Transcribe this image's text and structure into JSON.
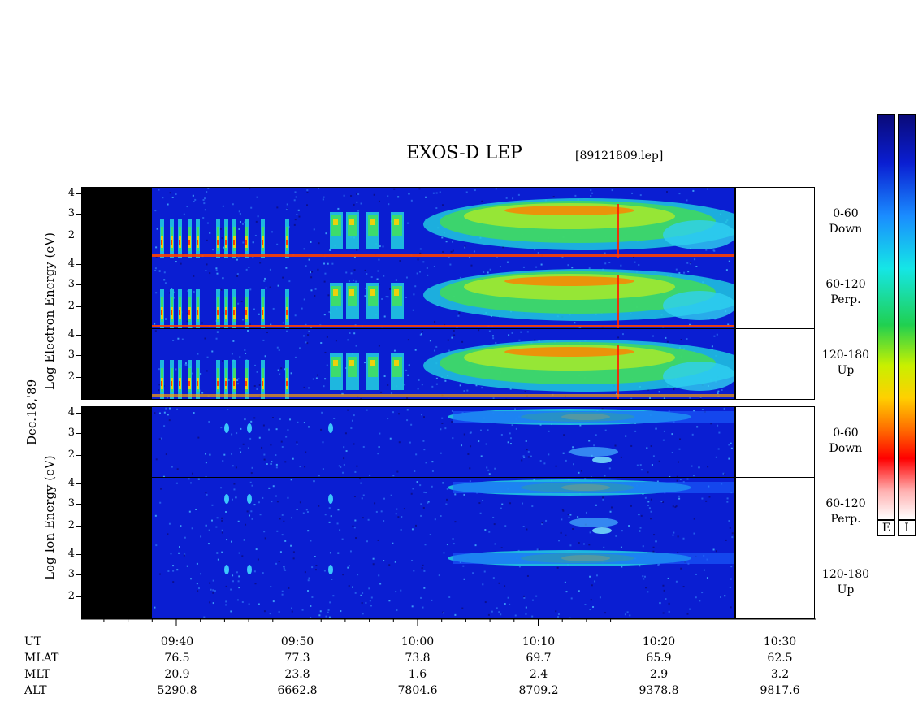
{
  "chart_data": {
    "type": "heatmap",
    "title": "EXOS-D LEP",
    "file_label": "[89121809.lep]",
    "date_label": "Dec.18,'89",
    "electron_ylabel": "Log  Electron  Energy (eV)",
    "ion_ylabel": "Log  Ion  Energy (eV)",
    "y_ticks": [
      "4",
      "3",
      "2"
    ],
    "panels": [
      {
        "species": "Electron",
        "pitch": "0-60",
        "dir": "Down"
      },
      {
        "species": "Electron",
        "pitch": "60-120",
        "dir": "Perp."
      },
      {
        "species": "Electron",
        "pitch": "120-180",
        "dir": "Up"
      },
      {
        "species": "Ion",
        "pitch": "0-60",
        "dir": "Down"
      },
      {
        "species": "Ion",
        "pitch": "60-120",
        "dir": "Perp."
      },
      {
        "species": "Ion",
        "pitch": "120-180",
        "dir": "Up"
      }
    ],
    "x_ticks": [
      "09:40",
      "09:50",
      "10:00",
      "10:10",
      "10:20",
      "10:30"
    ],
    "rows": [
      {
        "name": "UT",
        "values": [
          "09:40",
          "09:50",
          "10:00",
          "10:10",
          "10:20",
          "10:30"
        ]
      },
      {
        "name": "MLAT",
        "values": [
          "76.5",
          "77.3",
          "73.8",
          "69.7",
          "65.9",
          "62.5"
        ]
      },
      {
        "name": "MLT",
        "values": [
          "20.9",
          "23.8",
          "1.6",
          "2.4",
          "2.9",
          "3.2"
        ]
      },
      {
        "name": "ALT",
        "values": [
          "5290.8",
          "6662.8",
          "7804.6",
          "8709.2",
          "9378.8",
          "9817.6"
        ]
      }
    ],
    "colorbar_labels": [
      "E",
      "I"
    ],
    "colors": {
      "background": "#0a1ed2",
      "data_gap": "#000000"
    }
  }
}
